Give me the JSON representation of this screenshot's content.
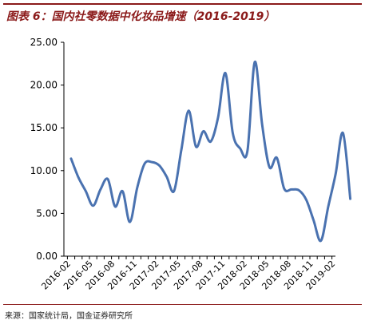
{
  "header": {
    "title": "图表 6：国内社零数据中化妆品增速（2016-2019）"
  },
  "footer": {
    "source": "来源：国家统计局，国金证券研究所"
  },
  "chart_data": {
    "type": "line",
    "title": "",
    "xlabel": "",
    "ylabel": "",
    "ylim": [
      0,
      25
    ],
    "yticks": [
      "0.00",
      "5.00",
      "10.00",
      "15.00",
      "20.00",
      "25.00"
    ],
    "xtick_labels": [
      "2016-02",
      "2016-05",
      "2016-08",
      "2016-11",
      "2017-02",
      "2017-05",
      "2017-08",
      "2017-11",
      "2018-02",
      "2018-05",
      "2018-08",
      "2018-11",
      "2019-02"
    ],
    "grid": false,
    "legend": "none",
    "line_color": "#4a72b0",
    "series": [
      {
        "x": [
          "2016-02",
          "2016-03",
          "2016-04",
          "2016-05",
          "2016-06",
          "2016-07",
          "2016-08",
          "2016-09",
          "2016-10",
          "2016-11",
          "2016-12",
          "2017-01",
          "2017-02",
          "2017-03",
          "2017-04",
          "2017-05",
          "2017-06",
          "2017-07",
          "2017-08",
          "2017-09",
          "2017-10",
          "2017-11",
          "2017-12",
          "2018-01",
          "2018-02",
          "2018-03",
          "2018-04",
          "2018-05",
          "2018-06",
          "2018-07",
          "2018-08",
          "2018-09",
          "2018-10",
          "2018-11",
          "2018-12",
          "2019-01",
          "2019-02",
          "2019-03",
          "2019-04"
        ],
        "values": [
          11.4,
          9.2,
          7.6,
          5.9,
          7.8,
          9.0,
          5.8,
          7.6,
          4.0,
          8.0,
          10.8,
          11.0,
          10.6,
          9.3,
          7.6,
          12.4,
          17.0,
          12.8,
          14.6,
          13.4,
          16.2,
          21.4,
          14.4,
          12.6,
          12.3,
          22.7,
          15.4,
          10.4,
          11.5,
          7.9,
          7.8,
          7.7,
          6.6,
          4.2,
          1.8,
          5.8,
          9.6,
          14.4,
          6.7
        ]
      }
    ]
  }
}
